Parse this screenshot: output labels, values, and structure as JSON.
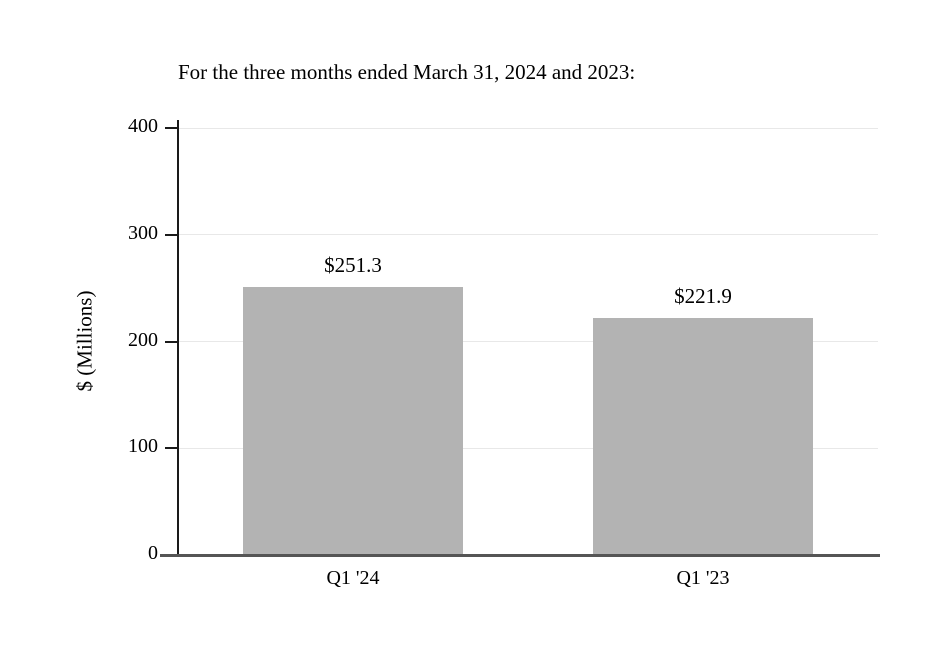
{
  "chart_data": {
    "type": "bar",
    "title": "For the three months ended March 31, 2024 and 2023:",
    "categories": [
      "Q1 '24",
      "Q1 '23"
    ],
    "values": [
      251.3,
      221.9
    ],
    "value_labels": [
      "$251.3",
      "$221.9"
    ],
    "xlabel": "",
    "ylabel": "$ (Millions)",
    "ylim": [
      0,
      400
    ],
    "yticks": [
      0,
      100,
      200,
      300,
      400
    ],
    "grid": true,
    "legend": "none",
    "bar_color": "#b3b3b3",
    "gridline_color": "#e8e8e8",
    "axis_color": "#555555",
    "background_color": "#ffffff"
  }
}
